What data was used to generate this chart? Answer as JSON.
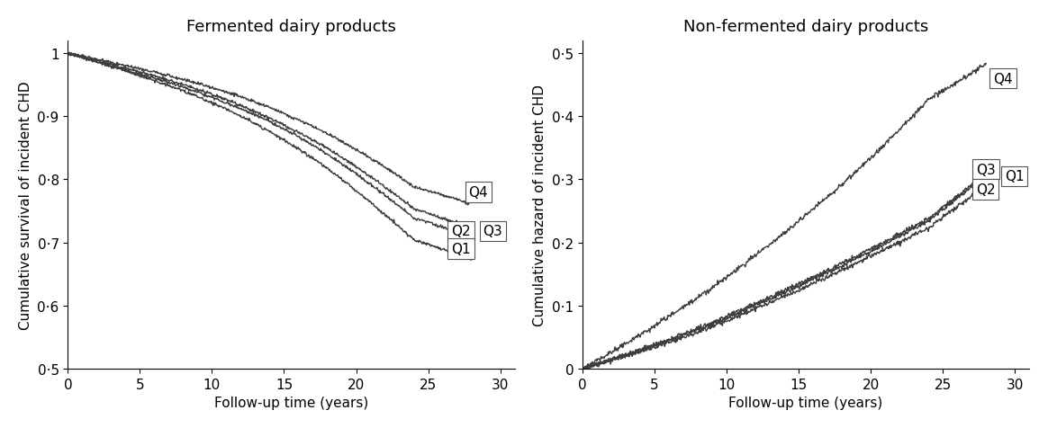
{
  "left_title": "Fermented dairy products",
  "right_title": "Non-fermented dairy products",
  "left_ylabel": "Cumulative survival of incident CHD",
  "right_ylabel": "Cumulative hazard of incident CHD",
  "xlabel": "Follow-up time (years)",
  "left_xlim": [
    0,
    31
  ],
  "left_ylim": [
    0.5,
    1.02
  ],
  "right_xlim": [
    0,
    31
  ],
  "right_ylim": [
    0,
    0.52
  ],
  "left_yticks": [
    0.5,
    0.6,
    0.7,
    0.8,
    0.9,
    1.0
  ],
  "right_yticks": [
    0.0,
    0.1,
    0.2,
    0.3,
    0.4,
    0.5
  ],
  "xticks": [
    0,
    5,
    10,
    15,
    20,
    25,
    30
  ],
  "background_color": "#ffffff",
  "fontsize_title": 13,
  "fontsize_label": 11,
  "fontsize_tick": 11,
  "fontsize_annot": 11,
  "left_curves": {
    "Q1": [
      0,
      1,
      2,
      3,
      4,
      5,
      6,
      7,
      8,
      9,
      10,
      11,
      12,
      13,
      14,
      15,
      16,
      17,
      18,
      19,
      20,
      21,
      22,
      23,
      24,
      25,
      26,
      27,
      28
    ],
    "Q1y": [
      1.0,
      0.993,
      0.986,
      0.979,
      0.972,
      0.964,
      0.956,
      0.948,
      0.94,
      0.931,
      0.921,
      0.911,
      0.9,
      0.888,
      0.876,
      0.862,
      0.848,
      0.833,
      0.817,
      0.8,
      0.782,
      0.763,
      0.744,
      0.724,
      0.704,
      0.697,
      0.689,
      0.681,
      0.673
    ],
    "Q2": [
      0,
      1,
      2,
      3,
      4,
      5,
      6,
      7,
      8,
      9,
      10,
      11,
      12,
      13,
      14,
      15,
      16,
      17,
      18,
      19,
      20,
      21,
      22,
      23,
      24,
      25,
      26,
      27,
      28
    ],
    "Q2y": [
      1.0,
      0.993,
      0.986,
      0.979,
      0.973,
      0.967,
      0.96,
      0.953,
      0.946,
      0.938,
      0.93,
      0.921,
      0.912,
      0.902,
      0.891,
      0.879,
      0.867,
      0.854,
      0.84,
      0.825,
      0.809,
      0.792,
      0.775,
      0.757,
      0.739,
      0.732,
      0.724,
      0.716,
      0.708
    ],
    "Q3": [
      0,
      1,
      2,
      3,
      4,
      5,
      6,
      7,
      8,
      9,
      10,
      11,
      12,
      13,
      14,
      15,
      16,
      17,
      18,
      19,
      20,
      21,
      22,
      23,
      24,
      25,
      26,
      27,
      28
    ],
    "Q3y": [
      1.0,
      0.994,
      0.988,
      0.982,
      0.976,
      0.97,
      0.964,
      0.957,
      0.95,
      0.942,
      0.934,
      0.926,
      0.917,
      0.907,
      0.897,
      0.886,
      0.874,
      0.862,
      0.849,
      0.835,
      0.82,
      0.804,
      0.788,
      0.771,
      0.753,
      0.746,
      0.738,
      0.73,
      0.722
    ],
    "Q4": [
      0,
      1,
      2,
      3,
      4,
      5,
      6,
      7,
      8,
      9,
      10,
      11,
      12,
      13,
      14,
      15,
      16,
      17,
      18,
      19,
      20,
      21,
      22,
      23,
      24,
      25,
      26,
      27,
      28
    ],
    "Q4y": [
      1.0,
      0.995,
      0.99,
      0.985,
      0.98,
      0.975,
      0.97,
      0.964,
      0.958,
      0.952,
      0.945,
      0.938,
      0.93,
      0.922,
      0.914,
      0.904,
      0.894,
      0.884,
      0.872,
      0.86,
      0.847,
      0.833,
      0.819,
      0.804,
      0.788,
      0.782,
      0.775,
      0.768,
      0.761
    ]
  },
  "right_curves": {
    "Q1": [
      0,
      1,
      2,
      3,
      4,
      5,
      6,
      7,
      8,
      9,
      10,
      11,
      12,
      13,
      14,
      15,
      16,
      17,
      18,
      19,
      20,
      21,
      22,
      23,
      24,
      25,
      26,
      27,
      28
    ],
    "Q1y": [
      0.0,
      0.007,
      0.014,
      0.022,
      0.03,
      0.038,
      0.046,
      0.055,
      0.064,
      0.073,
      0.083,
      0.093,
      0.103,
      0.113,
      0.124,
      0.134,
      0.145,
      0.156,
      0.167,
      0.178,
      0.19,
      0.201,
      0.213,
      0.225,
      0.237,
      0.255,
      0.273,
      0.291,
      0.309
    ],
    "Q2": [
      0,
      1,
      2,
      3,
      4,
      5,
      6,
      7,
      8,
      9,
      10,
      11,
      12,
      13,
      14,
      15,
      16,
      17,
      18,
      19,
      20,
      21,
      22,
      23,
      24,
      25,
      26,
      27,
      28
    ],
    "Q2y": [
      0.0,
      0.006,
      0.013,
      0.02,
      0.027,
      0.034,
      0.042,
      0.05,
      0.058,
      0.067,
      0.076,
      0.085,
      0.095,
      0.104,
      0.114,
      0.124,
      0.135,
      0.145,
      0.156,
      0.167,
      0.178,
      0.189,
      0.2,
      0.212,
      0.223,
      0.24,
      0.256,
      0.273,
      0.289
    ],
    "Q3": [
      0,
      1,
      2,
      3,
      4,
      5,
      6,
      7,
      8,
      9,
      10,
      11,
      12,
      13,
      14,
      15,
      16,
      17,
      18,
      19,
      20,
      21,
      22,
      23,
      24,
      25,
      26,
      27,
      28
    ],
    "Q3y": [
      0.0,
      0.007,
      0.014,
      0.021,
      0.029,
      0.037,
      0.045,
      0.053,
      0.062,
      0.071,
      0.08,
      0.09,
      0.1,
      0.11,
      0.12,
      0.131,
      0.142,
      0.152,
      0.163,
      0.175,
      0.186,
      0.198,
      0.21,
      0.222,
      0.234,
      0.252,
      0.27,
      0.288,
      0.307
    ],
    "Q4": [
      0,
      1,
      2,
      3,
      4,
      5,
      6,
      7,
      8,
      9,
      10,
      11,
      12,
      13,
      14,
      15,
      16,
      17,
      18,
      19,
      20,
      21,
      22,
      23,
      24,
      25,
      26,
      27,
      28
    ],
    "Q4y": [
      0.0,
      0.013,
      0.026,
      0.04,
      0.054,
      0.068,
      0.083,
      0.098,
      0.113,
      0.129,
      0.145,
      0.162,
      0.179,
      0.197,
      0.215,
      0.234,
      0.253,
      0.272,
      0.292,
      0.313,
      0.334,
      0.356,
      0.379,
      0.402,
      0.426,
      0.44,
      0.454,
      0.468,
      0.483
    ]
  },
  "left_colors": {
    "Q1": "#3a3a3a",
    "Q2": "#3a3a3a",
    "Q3": "#3a3a3a",
    "Q4": "#3a3a3a"
  },
  "right_colors": {
    "Q1": "#3a3a3a",
    "Q2": "#3a3a3a",
    "Q3": "#3a3a3a",
    "Q4": "#3a3a3a"
  }
}
